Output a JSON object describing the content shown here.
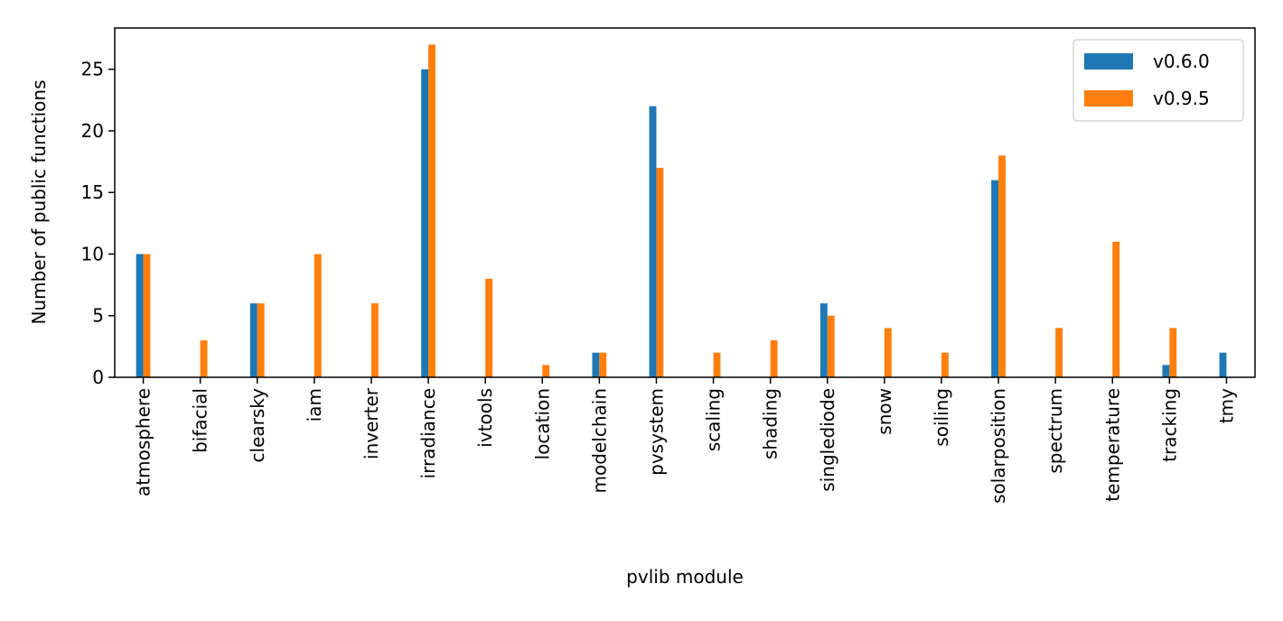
{
  "chart_data": {
    "type": "bar",
    "title": "",
    "xlabel": "pvlib module",
    "ylabel": "Number of public functions",
    "ylim": [
      0,
      28.35
    ],
    "yticks": [
      "0",
      "5",
      "10",
      "15",
      "20",
      "25"
    ],
    "categories": [
      "atmosphere",
      "bifacial",
      "clearsky",
      "iam",
      "inverter",
      "irradiance",
      "ivtools",
      "location",
      "modelchain",
      "pvsystem",
      "scaling",
      "shading",
      "singlediode",
      "snow",
      "soiling",
      "solarposition",
      "spectrum",
      "temperature",
      "tracking",
      "tmy"
    ],
    "series": [
      {
        "name": "v0.6.0",
        "color": "#1f77b4",
        "values": [
          10,
          0,
          6,
          0,
          0,
          25,
          0,
          0,
          2,
          22,
          0,
          0,
          6,
          0,
          0,
          16,
          0,
          0,
          1,
          2
        ]
      },
      {
        "name": "v0.9.5",
        "color": "#ff7f0e",
        "values": [
          10,
          3,
          6,
          10,
          6,
          27,
          8,
          1,
          2,
          17,
          2,
          3,
          5,
          4,
          2,
          18,
          4,
          11,
          4,
          0
        ]
      }
    ],
    "grid": false,
    "legend_position": "top-right"
  }
}
